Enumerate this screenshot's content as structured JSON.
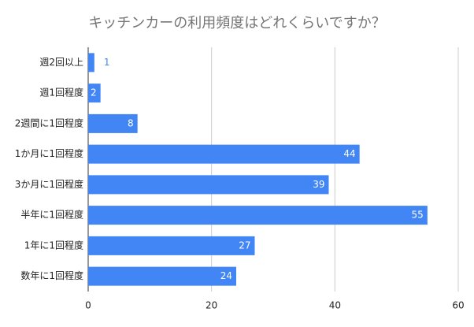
{
  "chart_data": {
    "type": "bar",
    "orientation": "horizontal",
    "title": "キッチンカーの利用頻度はどれくらいですか？",
    "categories": [
      "週2回以上",
      "週1回程度",
      "2週間に1回程度",
      "1か月に1回程度",
      "3か月に1回程度",
      "半年に1回程度",
      "1年に1回程度",
      "数年に1回程度"
    ],
    "values": [
      1,
      2,
      8,
      44,
      39,
      55,
      27,
      24
    ],
    "color": "#4285f4",
    "xlim": [
      0,
      60
    ],
    "xticks": [
      0,
      20,
      40,
      60
    ],
    "grid": true
  }
}
